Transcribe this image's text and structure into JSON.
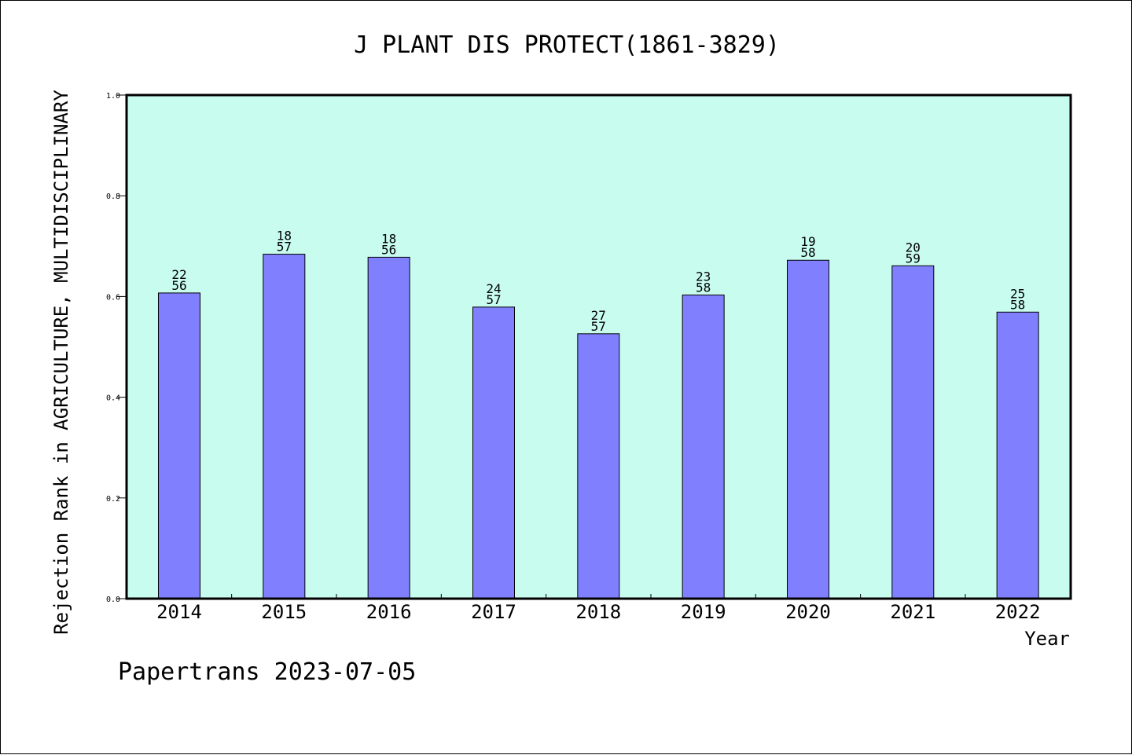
{
  "title": "J PLANT DIS PROTECT(1861-3829)",
  "footer": "Papertrans 2023-07-05",
  "colors": {
    "plot_background": "#c8fcee",
    "bar_fill": "#8080ff",
    "bar_stroke": "#000000",
    "axis": "#000000",
    "page_background": "#ffffff"
  },
  "chart_data": {
    "type": "bar",
    "title": "J PLANT DIS PROTECT(1861-3829)",
    "xlabel": "Year",
    "ylabel": "Rejection Rank in AGRICULTURE, MULTIDISCIPLINARY",
    "ylim": [
      0.0,
      1.0
    ],
    "yticks": [
      "0.0",
      "0.2",
      "0.4",
      "0.6",
      "0.8",
      "1.0"
    ],
    "grid": false,
    "categories": [
      "2014",
      "2015",
      "2016",
      "2017",
      "2018",
      "2019",
      "2020",
      "2021",
      "2022"
    ],
    "values": [
      0.607,
      0.684,
      0.678,
      0.579,
      0.526,
      0.603,
      0.672,
      0.661,
      0.569
    ],
    "bar_labels": [
      [
        "22",
        "56"
      ],
      [
        "18",
        "57"
      ],
      [
        "18",
        "56"
      ],
      [
        "24",
        "57"
      ],
      [
        "27",
        "57"
      ],
      [
        "23",
        "58"
      ],
      [
        "19",
        "58"
      ],
      [
        "20",
        "59"
      ],
      [
        "25",
        "58"
      ]
    ]
  }
}
